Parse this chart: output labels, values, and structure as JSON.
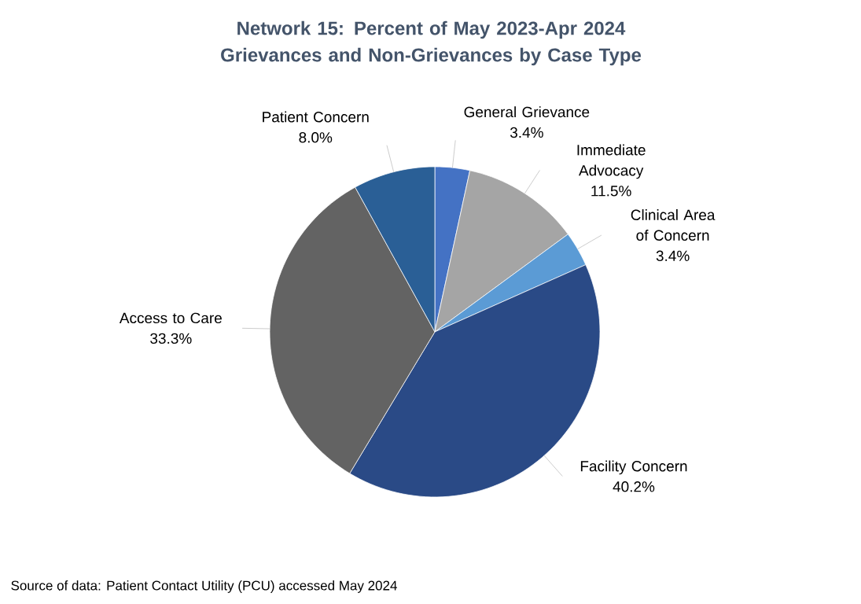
{
  "chart_data": {
    "type": "pie",
    "title": "Network 15: Percent of May 2023-Apr 2024 Grievances and Non-Grievances by Case Type",
    "categories": [
      "General Grievance",
      "Immediate Advocacy",
      "Clinical Area of Concern",
      "Facility Concern",
      "Access to Care",
      "Patient Concern"
    ],
    "values": [
      3.4,
      11.5,
      3.4,
      40.2,
      33.3,
      8.0
    ],
    "value_labels": [
      "3.4%",
      "11.5%",
      "3.4%",
      "40.2%",
      "33.3%",
      "8.0%"
    ],
    "colors": [
      "#4472c4",
      "#a5a5a5",
      "#5b9bd5",
      "#2a4a86",
      "#636363",
      "#2a5f96"
    ],
    "annotations": [
      "Source of data:  Patient Contact Utility (PCU) accessed May 2024"
    ]
  }
}
